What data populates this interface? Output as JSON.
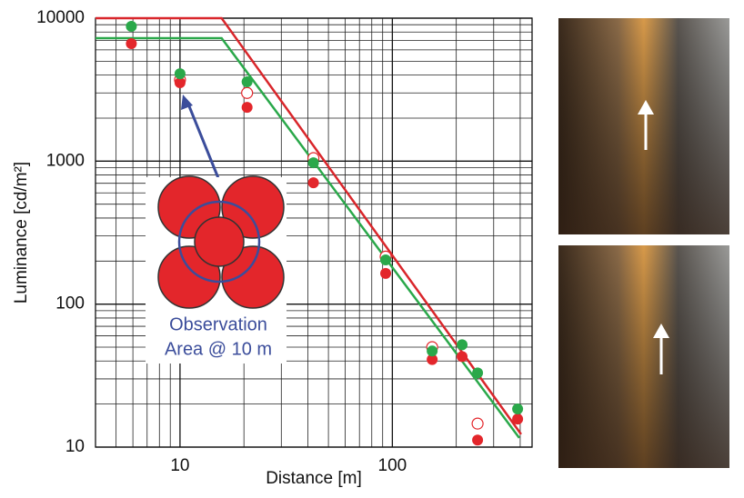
{
  "chart_data": {
    "type": "scatter",
    "x_label": "Distance [m]",
    "y_label": "Luminance [cd/m²]",
    "log_x": true,
    "log_y": true,
    "grid": true,
    "xlim": [
      4,
      455
    ],
    "ylim": [
      10,
      10000
    ],
    "xticks": [
      10,
      100
    ],
    "yticks": [
      10,
      100,
      1000,
      10000
    ],
    "minor_xticks": [
      5,
      6,
      7,
      8,
      9,
      20,
      30,
      40,
      50,
      60,
      70,
      80,
      90,
      200,
      300,
      400
    ],
    "minor_yticks": [
      20,
      30,
      40,
      50,
      60,
      70,
      80,
      90,
      200,
      300,
      400,
      500,
      600,
      700,
      800,
      900,
      2000,
      3000,
      4000,
      5000,
      6000,
      7000,
      8000,
      9000
    ],
    "x": [
      5.9,
      10,
      20.7,
      42.5,
      93,
      154,
      213,
      252,
      389
    ],
    "series": [
      {
        "color": "#e3262b",
        "marker": "hollow",
        "values": [
          null,
          3700,
          3000,
          1050,
          215,
          50,
          null,
          14.6,
          null
        ]
      },
      {
        "color": "#e3262b",
        "marker": "filled",
        "values": [
          6640,
          3540,
          2380,
          706,
          164,
          41,
          43,
          11.2,
          15.7
        ]
      },
      {
        "color": "#2aa84a",
        "marker": "filled",
        "values": [
          8770,
          4090,
          3590,
          975,
          204,
          47,
          52,
          33,
          18.5
        ]
      }
    ],
    "lines": [
      {
        "color": "#d9262b",
        "x": [
          4,
          15.7,
          404
        ],
        "values": [
          10000,
          10000,
          12.3
        ]
      },
      {
        "color": "#2aa84a",
        "x": [
          4,
          15.7,
          396
        ],
        "values": [
          7250,
          7250,
          11.6
        ]
      }
    ],
    "annotation": [
      "Observation",
      "Area @ 10 m"
    ]
  }
}
